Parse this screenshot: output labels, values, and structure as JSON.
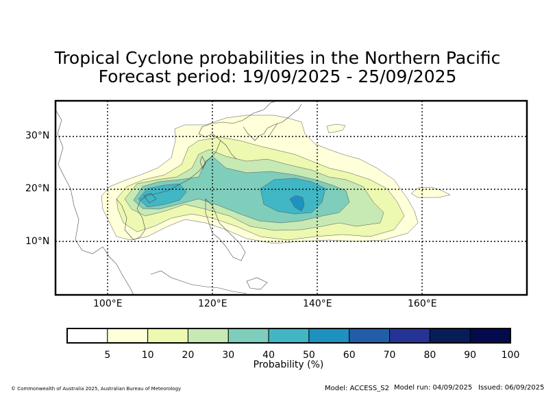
{
  "title_line1": "Tropical Cyclone probabilities in the Northern Pacific",
  "title_line2": "Forecast period: 19/09/2025 - 25/09/2025",
  "lat_labels": [
    "30°N",
    "20°N",
    "10°N"
  ],
  "lon_labels": [
    "100°E",
    "120°E",
    "140°E",
    "160°E"
  ],
  "colorbar": {
    "colors": [
      "#ffffff",
      "#ffffd9",
      "#edf8b1",
      "#c7e9b4",
      "#7fcdbb",
      "#41b6c4",
      "#1d91c0",
      "#225ea8",
      "#253494",
      "#081d58",
      "#030a4e"
    ],
    "ticks": [
      "5",
      "10",
      "20",
      "30",
      "40",
      "50",
      "60",
      "70",
      "80",
      "90",
      "100"
    ],
    "label": "Probability (%)"
  },
  "footer": {
    "copyright": "© Commonwealth of Australia 2025, Australian Bureau of Meteorology",
    "model": "Model: ACCESS_S2",
    "model_run": "Model run: 04/09/2025",
    "issued": "Issued: 06/09/2025"
  }
}
